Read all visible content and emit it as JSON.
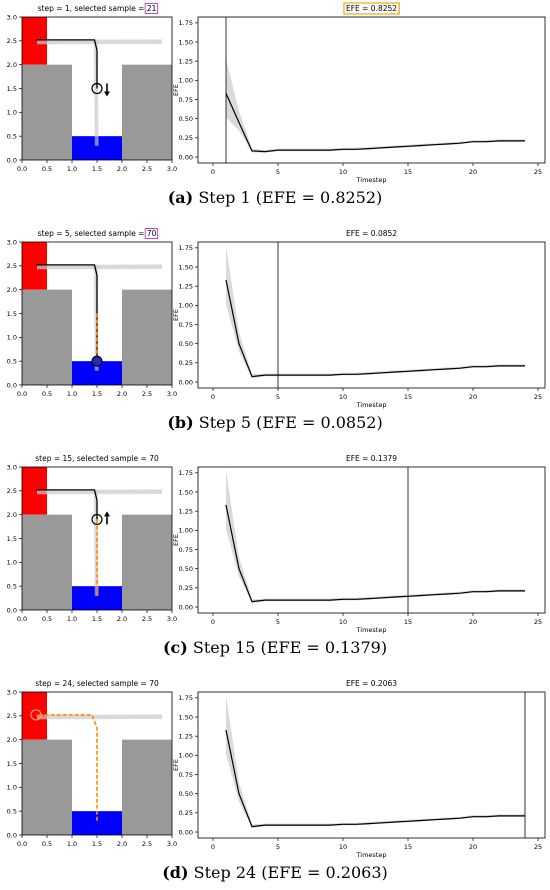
{
  "panels": [
    {
      "caption_letter": "(a)",
      "caption_text": "Step 1 (EFE = 0.8252)",
      "env_title_prefix": "step = 1, selected sample = ",
      "env_title_sample": "21",
      "env_title_sample_boxed": true,
      "efe_title": "EFE = 0.8252",
      "efe_title_boxed": true,
      "step": 1,
      "agent": {
        "x": 1.5,
        "y": 1.5,
        "arrow": "down"
      },
      "chosen_path": [
        [
          0.28,
          2.52
        ],
        [
          1.45,
          2.52
        ],
        [
          1.5,
          2.3
        ],
        [
          1.5,
          1.5
        ]
      ],
      "executed_path": []
    },
    {
      "caption_letter": "(b)",
      "caption_text": "Step 5 (EFE = 0.0852)",
      "env_title_prefix": "step = 5, selected sample = ",
      "env_title_sample": "70",
      "env_title_sample_boxed": true,
      "efe_title": "EFE = 0.0852",
      "efe_title_boxed": false,
      "step": 5,
      "agent": {
        "x": 1.5,
        "y": 0.5,
        "arrow": "none",
        "filled": true
      },
      "chosen_path": [
        [
          0.28,
          2.52
        ],
        [
          1.45,
          2.52
        ],
        [
          1.5,
          2.3
        ],
        [
          1.5,
          0.5
        ]
      ],
      "executed_path": [
        [
          1.5,
          1.5
        ],
        [
          1.5,
          0.5
        ]
      ]
    },
    {
      "caption_letter": "(c)",
      "caption_text": "Step 15 (EFE = 0.1379)",
      "env_title_prefix": "step = 15, selected sample = 70",
      "env_title_sample": "",
      "env_title_sample_boxed": false,
      "efe_title": "EFE = 0.1379",
      "efe_title_boxed": false,
      "step": 15,
      "agent": {
        "x": 1.5,
        "y": 1.9,
        "arrow": "up"
      },
      "chosen_path": [
        [
          0.28,
          2.52
        ],
        [
          1.45,
          2.52
        ],
        [
          1.5,
          2.3
        ],
        [
          1.5,
          1.9
        ]
      ],
      "executed_path": [
        [
          1.5,
          0.3
        ],
        [
          1.5,
          1.9
        ]
      ]
    },
    {
      "caption_letter": "(d)",
      "caption_text": "Step 24 (EFE = 0.2063)",
      "env_title_prefix": "step = 24, selected sample = 70",
      "env_title_sample": "",
      "env_title_sample_boxed": false,
      "efe_title": "EFE = 0.2063",
      "efe_title_boxed": false,
      "step": 24,
      "agent": {
        "x": 0.28,
        "y": 2.52,
        "arrow": "none",
        "faded": true
      },
      "chosen_path": [],
      "executed_path": [
        [
          1.5,
          0.3
        ],
        [
          1.5,
          2.25
        ],
        [
          1.4,
          2.52
        ],
        [
          0.28,
          2.52
        ]
      ]
    }
  ],
  "colors": {
    "goal": "#ff0000",
    "start": "#0000ff",
    "wall": "#999999",
    "executed": "#ff8c00",
    "boxed_sample": "#cc44cc",
    "boxed_efe": "#ffa500"
  },
  "chart_data": [
    {
      "type": "scatter",
      "title": "",
      "xlabel": "",
      "ylabel": "",
      "xlim": [
        0,
        3
      ],
      "ylim": [
        0,
        3
      ],
      "xticks": [
        "0.0",
        "0.5",
        "1.0",
        "1.5",
        "2.0",
        "2.5",
        "3.0"
      ],
      "yticks": [
        "0.0",
        "0.5",
        "1.0",
        "1.5",
        "2.0",
        "2.5",
        "3.0"
      ],
      "regions": [
        {
          "name": "goal",
          "x": [
            0,
            0.5
          ],
          "y": [
            2,
            3
          ]
        },
        {
          "name": "left-wall",
          "x": [
            0,
            1
          ],
          "y": [
            0,
            2
          ]
        },
        {
          "name": "right-wall",
          "x": [
            2,
            3
          ],
          "y": [
            0,
            2
          ]
        },
        {
          "name": "start",
          "x": [
            1,
            2
          ],
          "y": [
            0,
            0.5
          ]
        }
      ]
    },
    {
      "type": "line",
      "title": "",
      "xlabel": "Timestep",
      "ylabel": "EFE",
      "xlim": [
        0,
        25
      ],
      "ylim": [
        0,
        1.8
      ],
      "xticks": [
        "0",
        "5",
        "10",
        "15",
        "20",
        "25"
      ],
      "yticks": [
        "0.00",
        "0.25",
        "0.50",
        "0.75",
        "1.00",
        "1.25",
        "1.50",
        "1.75"
      ],
      "x": [
        1,
        2,
        3,
        4,
        5,
        6,
        7,
        8,
        9,
        10,
        11,
        12,
        13,
        14,
        15,
        16,
        17,
        18,
        19,
        20,
        21,
        22,
        23,
        24
      ],
      "series": [
        {
          "values_by_panel": [
            [
              0.83,
              0.45,
              0.08,
              0.07,
              0.09,
              0.09,
              0.09,
              0.09,
              0.09,
              0.1,
              0.1,
              0.11,
              0.12,
              0.13,
              0.14,
              0.15,
              0.16,
              0.17,
              0.18,
              0.2,
              0.2,
              0.21,
              0.21,
              0.21
            ],
            [
              1.33,
              0.5,
              0.07,
              0.09,
              0.09,
              0.09,
              0.09,
              0.09,
              0.09,
              0.1,
              0.1,
              0.11,
              0.12,
              0.13,
              0.14,
              0.15,
              0.16,
              0.17,
              0.18,
              0.2,
              0.2,
              0.21,
              0.21,
              0.21
            ],
            [
              1.33,
              0.5,
              0.07,
              0.09,
              0.09,
              0.09,
              0.09,
              0.09,
              0.09,
              0.1,
              0.1,
              0.11,
              0.12,
              0.13,
              0.14,
              0.15,
              0.16,
              0.17,
              0.18,
              0.2,
              0.2,
              0.21,
              0.21,
              0.21
            ],
            [
              1.33,
              0.5,
              0.07,
              0.09,
              0.09,
              0.09,
              0.09,
              0.09,
              0.09,
              0.1,
              0.1,
              0.11,
              0.12,
              0.13,
              0.14,
              0.15,
              0.16,
              0.17,
              0.18,
              0.2,
              0.2,
              0.21,
              0.21,
              0.21
            ]
          ]
        }
      ]
    }
  ]
}
